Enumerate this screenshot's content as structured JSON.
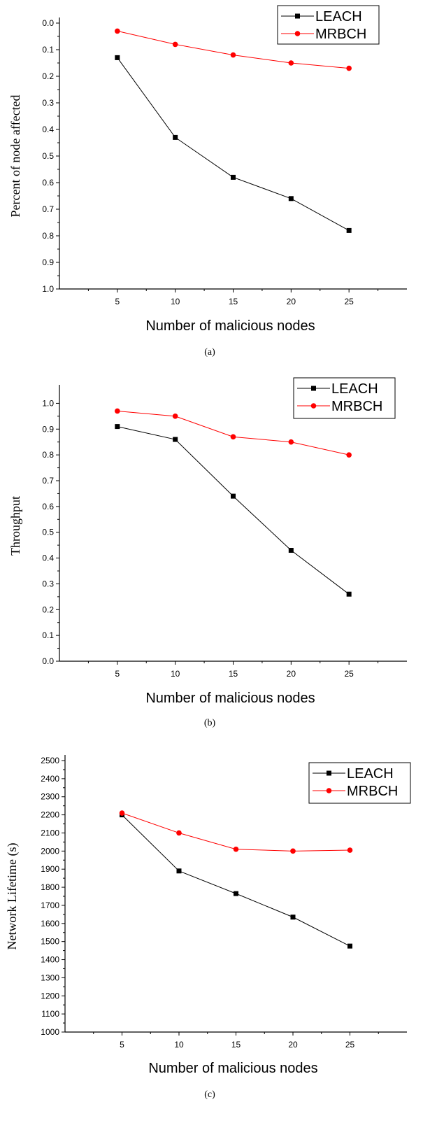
{
  "chart_data": [
    {
      "type": "line",
      "caption": "(a)",
      "xlabel": "Number of malicious nodes",
      "ylabel": "Percent of node affected",
      "x": [
        5,
        10,
        15,
        20,
        25
      ],
      "xlim": [
        0,
        30
      ],
      "xticks": [
        "5",
        "10",
        "15",
        "20",
        "25"
      ],
      "ylim": [
        0.0,
        1.0
      ],
      "y_inverted": true,
      "yticks": [
        "0.0",
        "0.1",
        "0.2",
        "0.3",
        "0.4",
        "0.5",
        "0.6",
        "0.7",
        "0.8",
        "0.9",
        "1.0"
      ],
      "grid": false,
      "legend_position": "top-right",
      "series": [
        {
          "name": "LEACH",
          "color": "#000000",
          "marker": "square",
          "values": [
            0.13,
            0.43,
            0.58,
            0.66,
            0.78
          ]
        },
        {
          "name": "MRBCH",
          "color": "#ff0000",
          "marker": "circle",
          "values": [
            0.03,
            0.08,
            0.12,
            0.15,
            0.17
          ]
        }
      ]
    },
    {
      "type": "line",
      "caption": "(b)",
      "xlabel": "Number of malicious nodes",
      "ylabel": "Throughput",
      "x": [
        5,
        10,
        15,
        20,
        25
      ],
      "xlim": [
        0,
        30
      ],
      "xticks": [
        "5",
        "10",
        "15",
        "20",
        "25"
      ],
      "ylim": [
        0.0,
        1.05
      ],
      "yticks": [
        "0.0",
        "0.1",
        "0.2",
        "0.3",
        "0.4",
        "0.5",
        "0.6",
        "0.7",
        "0.8",
        "0.9",
        "1.0"
      ],
      "grid": false,
      "legend_position": "top-right",
      "series": [
        {
          "name": "LEACH",
          "color": "#000000",
          "marker": "square",
          "values": [
            0.91,
            0.86,
            0.64,
            0.43,
            0.26
          ]
        },
        {
          "name": "MRBCH",
          "color": "#ff0000",
          "marker": "circle",
          "values": [
            0.97,
            0.95,
            0.87,
            0.85,
            0.8
          ]
        }
      ]
    },
    {
      "type": "line",
      "caption": "(c)",
      "xlabel": "Number of malicious nodes",
      "ylabel": "Network Lifetime (s)",
      "x": [
        5,
        10,
        15,
        20,
        25
      ],
      "xlim": [
        0,
        30
      ],
      "xticks": [
        "5",
        "10",
        "15",
        "20",
        "25"
      ],
      "ylim": [
        1000,
        2500
      ],
      "yticks": [
        "1000",
        "1100",
        "1200",
        "1300",
        "1400",
        "1500",
        "1600",
        "1700",
        "1800",
        "1900",
        "2000",
        "2100",
        "2200",
        "2300",
        "2400",
        "2500"
      ],
      "grid": false,
      "legend_position": "top-right",
      "series": [
        {
          "name": "LEACH",
          "color": "#000000",
          "marker": "square",
          "values": [
            2200,
            1890,
            1765,
            1635,
            1475
          ]
        },
        {
          "name": "MRBCH",
          "color": "#ff0000",
          "marker": "circle",
          "values": [
            2210,
            2100,
            2010,
            2000,
            2005
          ]
        }
      ]
    }
  ]
}
